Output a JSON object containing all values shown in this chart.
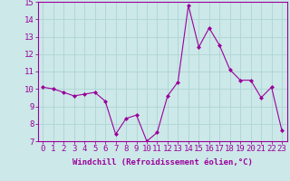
{
  "x": [
    0,
    1,
    2,
    3,
    4,
    5,
    6,
    7,
    8,
    9,
    10,
    11,
    12,
    13,
    14,
    15,
    16,
    17,
    18,
    19,
    20,
    21,
    22,
    23
  ],
  "y": [
    10.1,
    10.0,
    9.8,
    9.6,
    9.7,
    9.8,
    9.3,
    7.4,
    8.3,
    8.5,
    7.0,
    7.5,
    9.6,
    10.4,
    14.8,
    12.4,
    13.5,
    12.5,
    11.1,
    10.5,
    10.5,
    9.5,
    10.1,
    7.6
  ],
  "line_color": "#9b009b",
  "marker": "D",
  "marker_size": 2,
  "bg_color": "#cce8e8",
  "grid_color": "#aed4d4",
  "xlabel": "Windchill (Refroidissement éolien,°C)",
  "xlabel_fontsize": 6.5,
  "xtick_labels": [
    "0",
    "1",
    "2",
    "3",
    "4",
    "5",
    "6",
    "7",
    "8",
    "9",
    "10",
    "11",
    "12",
    "13",
    "14",
    "15",
    "16",
    "17",
    "18",
    "19",
    "20",
    "21",
    "22",
    "23"
  ],
  "ylim": [
    7,
    15
  ],
  "yticks": [
    7,
    8,
    9,
    10,
    11,
    12,
    13,
    14,
    15
  ],
  "tick_fontsize": 6.5,
  "tick_color": "#9b009b",
  "axis_color": "#9b009b",
  "spine_color": "#9b009b"
}
